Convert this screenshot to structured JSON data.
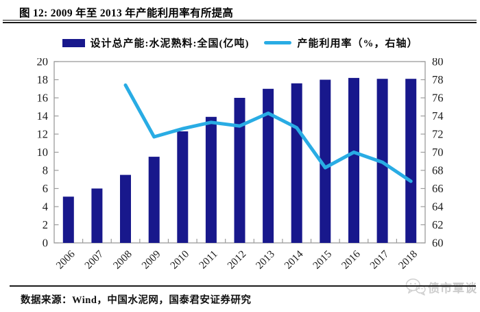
{
  "figure": {
    "title": "图 12:  2009 年至 2013 年产能利用率有所提高"
  },
  "legend": [
    {
      "label": "设计总产能:水泥熟料:全国(亿吨)",
      "type": "bar",
      "color": "#18188C"
    },
    {
      "label": "产能利用率（%，右轴）",
      "type": "line",
      "color": "#29ACE4"
    }
  ],
  "chart_data": {
    "type": "bar+line combo",
    "title": "2009 年至 2013 年产能利用率有所提高",
    "categories": [
      "2006",
      "2007",
      "2008",
      "2009",
      "2010",
      "2011",
      "2012",
      "2013",
      "2014",
      "2015",
      "2016",
      "2017",
      "2018"
    ],
    "series": [
      {
        "name": "设计总产能:水泥熟料:全国(亿吨)",
        "type": "bar",
        "axis": "left",
        "color": "#18188C",
        "values": [
          5.1,
          6.0,
          7.5,
          9.5,
          12.3,
          13.9,
          16.0,
          17.0,
          17.6,
          18.0,
          18.2,
          18.1,
          18.1
        ]
      },
      {
        "name": "产能利用率（%，右轴）",
        "type": "line",
        "axis": "right",
        "color": "#29ACE4",
        "values": [
          null,
          null,
          77.4,
          71.7,
          72.6,
          73.3,
          72.9,
          74.3,
          72.7,
          68.3,
          70.0,
          68.9,
          66.8
        ]
      }
    ],
    "left_axis": {
      "min": 0,
      "max": 20,
      "ticks": [
        0,
        2,
        4,
        6,
        8,
        10,
        12,
        14,
        16,
        18,
        20
      ]
    },
    "right_axis": {
      "min": 60,
      "max": 80,
      "ticks": [
        60,
        62,
        64,
        66,
        68,
        70,
        72,
        74,
        76,
        78,
        80
      ]
    },
    "grid": false,
    "legend_position": "top",
    "axis_color": "#9b9b9b",
    "text_color": "#1a1a1a"
  },
  "footer": {
    "source": "数据来源：Wind，中国水泥网，国泰君安证券研究",
    "watermark": "债市覃谈"
  }
}
